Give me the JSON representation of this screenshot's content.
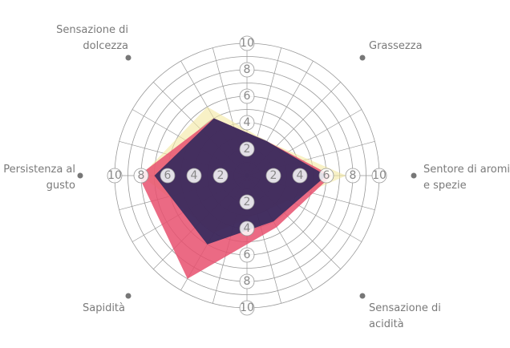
{
  "chart_data": {
    "type": "radar",
    "categories": [
      "Sentore di aromi e spezie",
      "Sensazione di acidità",
      "Sapidità",
      "Persistenza al gusto",
      "Sensazione di dolcezza",
      "Grassezza"
    ],
    "series": [
      {
        "color": "#f3e7a0",
        "values": [
          7.5,
          3,
          5,
          8,
          6,
          3
        ]
      },
      {
        "color": "#e8506e",
        "values": [
          6.4,
          4.5,
          9,
          8.2,
          5,
          3
        ]
      },
      {
        "color": "#27265a",
        "values": [
          6,
          4,
          6,
          7,
          5,
          3
        ]
      }
    ],
    "ylim": [
      0,
      10
    ],
    "yticks": [
      2,
      4,
      6,
      8,
      10
    ],
    "grid": true
  }
}
